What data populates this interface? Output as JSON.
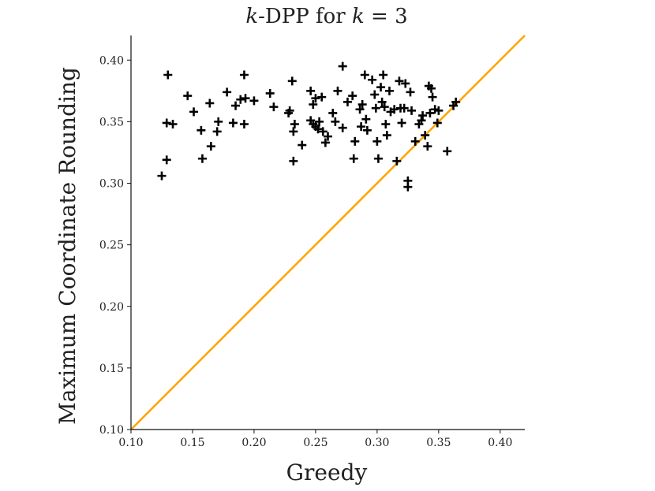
{
  "chart_data": {
    "type": "scatter",
    "title": {
      "prefix": "k",
      "middle": "-DPP for ",
      "kvar": "k",
      "suffix": " = 3"
    },
    "xlabel": "Greedy",
    "ylabel": "Maximum Coordinate Rounding",
    "xlim": [
      0.1,
      0.42
    ],
    "ylim": [
      0.1,
      0.42
    ],
    "xticks": [
      "0.10",
      "0.15",
      "0.20",
      "0.25",
      "0.30",
      "0.35",
      "0.40"
    ],
    "yticks": [
      "0.10",
      "0.15",
      "0.20",
      "0.25",
      "0.30",
      "0.35",
      "0.40"
    ],
    "reference_line": {
      "name": "y = x",
      "color": "#FFA500"
    },
    "marker_color": "#000000",
    "points": [
      [
        0.13,
        0.388
      ],
      [
        0.129,
        0.349
      ],
      [
        0.134,
        0.348
      ],
      [
        0.129,
        0.319
      ],
      [
        0.125,
        0.306
      ],
      [
        0.146,
        0.371
      ],
      [
        0.151,
        0.358
      ],
      [
        0.157,
        0.343
      ],
      [
        0.158,
        0.32
      ],
      [
        0.164,
        0.365
      ],
      [
        0.165,
        0.33
      ],
      [
        0.17,
        0.342
      ],
      [
        0.171,
        0.35
      ],
      [
        0.178,
        0.374
      ],
      [
        0.183,
        0.349
      ],
      [
        0.185,
        0.363
      ],
      [
        0.189,
        0.368
      ],
      [
        0.192,
        0.388
      ],
      [
        0.192,
        0.348
      ],
      [
        0.193,
        0.369
      ],
      [
        0.2,
        0.367
      ],
      [
        0.213,
        0.373
      ],
      [
        0.216,
        0.362
      ],
      [
        0.228,
        0.357
      ],
      [
        0.229,
        0.359
      ],
      [
        0.231,
        0.383
      ],
      [
        0.232,
        0.342
      ],
      [
        0.233,
        0.348
      ],
      [
        0.232,
        0.318
      ],
      [
        0.239,
        0.331
      ],
      [
        0.246,
        0.375
      ],
      [
        0.246,
        0.351
      ],
      [
        0.248,
        0.364
      ],
      [
        0.25,
        0.369
      ],
      [
        0.248,
        0.348
      ],
      [
        0.25,
        0.346
      ],
      [
        0.252,
        0.344
      ],
      [
        0.253,
        0.35
      ],
      [
        0.255,
        0.37
      ],
      [
        0.256,
        0.342
      ],
      [
        0.258,
        0.333
      ],
      [
        0.26,
        0.338
      ],
      [
        0.264,
        0.357
      ],
      [
        0.266,
        0.35
      ],
      [
        0.268,
        0.375
      ],
      [
        0.272,
        0.345
      ],
      [
        0.272,
        0.395
      ],
      [
        0.276,
        0.366
      ],
      [
        0.28,
        0.371
      ],
      [
        0.281,
        0.32
      ],
      [
        0.282,
        0.334
      ],
      [
        0.286,
        0.36
      ],
      [
        0.287,
        0.346
      ],
      [
        0.288,
        0.364
      ],
      [
        0.29,
        0.388
      ],
      [
        0.291,
        0.352
      ],
      [
        0.292,
        0.343
      ],
      [
        0.296,
        0.384
      ],
      [
        0.298,
        0.372
      ],
      [
        0.299,
        0.361
      ],
      [
        0.3,
        0.334
      ],
      [
        0.301,
        0.32
      ],
      [
        0.303,
        0.378
      ],
      [
        0.304,
        0.366
      ],
      [
        0.305,
        0.388
      ],
      [
        0.306,
        0.362
      ],
      [
        0.307,
        0.348
      ],
      [
        0.308,
        0.339
      ],
      [
        0.31,
        0.375
      ],
      [
        0.311,
        0.358
      ],
      [
        0.314,
        0.36
      ],
      [
        0.316,
        0.318
      ],
      [
        0.318,
        0.383
      ],
      [
        0.319,
        0.361
      ],
      [
        0.32,
        0.349
      ],
      [
        0.322,
        0.361
      ],
      [
        0.323,
        0.381
      ],
      [
        0.325,
        0.302
      ],
      [
        0.325,
        0.297
      ],
      [
        0.327,
        0.374
      ],
      [
        0.328,
        0.359
      ],
      [
        0.331,
        0.334
      ],
      [
        0.334,
        0.348
      ],
      [
        0.336,
        0.351
      ],
      [
        0.337,
        0.355
      ],
      [
        0.339,
        0.339
      ],
      [
        0.341,
        0.33
      ],
      [
        0.342,
        0.379
      ],
      [
        0.343,
        0.357
      ],
      [
        0.344,
        0.377
      ],
      [
        0.345,
        0.37
      ],
      [
        0.347,
        0.36
      ],
      [
        0.349,
        0.349
      ],
      [
        0.35,
        0.359
      ],
      [
        0.357,
        0.326
      ],
      [
        0.362,
        0.363
      ],
      [
        0.364,
        0.366
      ]
    ]
  }
}
